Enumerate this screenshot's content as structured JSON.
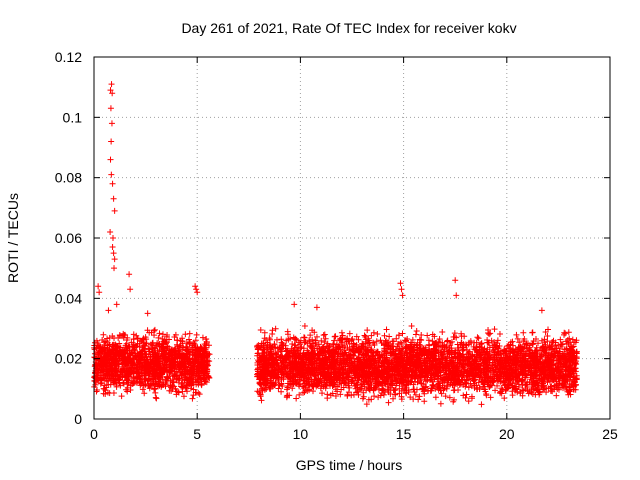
{
  "chart_data": {
    "type": "scatter",
    "title": "Day 261 of 2021, Rate Of TEC Index for receiver kokv",
    "xlabel": "GPS time / hours",
    "ylabel": "ROTI / TECUs",
    "xlim": [
      0,
      25
    ],
    "ylim": [
      0,
      0.12
    ],
    "x_ticks": [
      0,
      5,
      10,
      15,
      20,
      25
    ],
    "y_ticks": [
      0,
      0.02,
      0.04,
      0.06,
      0.08,
      0.1,
      0.12
    ],
    "x_tick_labels": [
      "0",
      "5",
      "10",
      "15",
      "20",
      "25"
    ],
    "y_tick_labels": [
      "0",
      "0.02",
      "0.04",
      "0.06",
      "0.08",
      "0.1",
      "0.12"
    ],
    "grid": true,
    "marker": "+",
    "marker_color": "#ff0000",
    "series": [
      {
        "name": "ROTI",
        "segments": [
          {
            "x_start": 0.0,
            "x_end": 5.6,
            "typical_min": 0.005,
            "typical_max": 0.03
          },
          {
            "x_start": 7.9,
            "x_end": 23.4,
            "typical_min": 0.004,
            "typical_max": 0.03
          }
        ],
        "outliers": [
          {
            "x": 0.8,
            "y": 0.109
          },
          {
            "x": 0.85,
            "y": 0.111
          },
          {
            "x": 0.88,
            "y": 0.108
          },
          {
            "x": 0.82,
            "y": 0.103
          },
          {
            "x": 0.87,
            "y": 0.098
          },
          {
            "x": 0.83,
            "y": 0.092
          },
          {
            "x": 0.8,
            "y": 0.086
          },
          {
            "x": 0.84,
            "y": 0.081
          },
          {
            "x": 0.9,
            "y": 0.078
          },
          {
            "x": 0.95,
            "y": 0.073
          },
          {
            "x": 1.0,
            "y": 0.069
          },
          {
            "x": 0.78,
            "y": 0.062
          },
          {
            "x": 0.92,
            "y": 0.06
          },
          {
            "x": 0.9,
            "y": 0.057
          },
          {
            "x": 0.95,
            "y": 0.055
          },
          {
            "x": 1.0,
            "y": 0.053
          },
          {
            "x": 0.97,
            "y": 0.05
          },
          {
            "x": 1.7,
            "y": 0.048
          },
          {
            "x": 0.2,
            "y": 0.044
          },
          {
            "x": 0.25,
            "y": 0.042
          },
          {
            "x": 1.75,
            "y": 0.043
          },
          {
            "x": 4.9,
            "y": 0.044
          },
          {
            "x": 4.95,
            "y": 0.043
          },
          {
            "x": 5.0,
            "y": 0.042
          },
          {
            "x": 14.85,
            "y": 0.045
          },
          {
            "x": 14.9,
            "y": 0.043
          },
          {
            "x": 14.95,
            "y": 0.041
          },
          {
            "x": 17.5,
            "y": 0.046
          },
          {
            "x": 17.55,
            "y": 0.041
          },
          {
            "x": 1.1,
            "y": 0.038
          },
          {
            "x": 9.7,
            "y": 0.038
          },
          {
            "x": 10.8,
            "y": 0.037
          },
          {
            "x": 21.7,
            "y": 0.036
          },
          {
            "x": 0.7,
            "y": 0.036
          },
          {
            "x": 2.6,
            "y": 0.035
          }
        ]
      }
    ]
  }
}
